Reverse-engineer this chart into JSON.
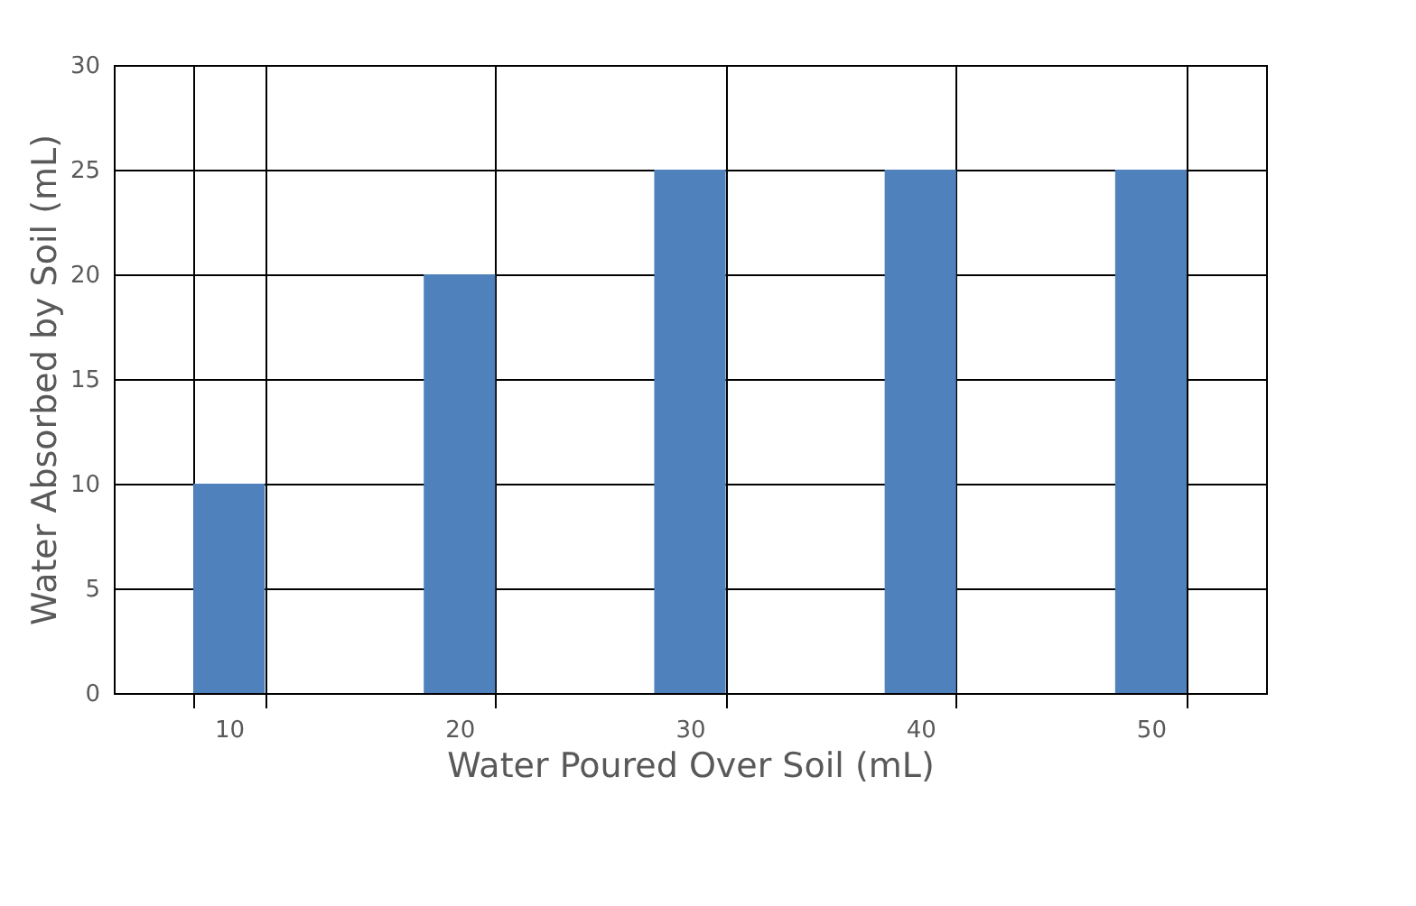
{
  "chart_data": {
    "type": "bar",
    "xlabel": "Water Poured Over Soil (mL)",
    "ylabel": "Water Absorbed by Soil (mL)",
    "categories": [
      "10",
      "20",
      "30",
      "40",
      "50"
    ],
    "values": [
      10,
      20,
      25,
      25,
      25
    ],
    "color": "#4f81bd",
    "ylim": [
      0,
      30
    ],
    "yticks": [
      0,
      5,
      10,
      15,
      20,
      25,
      30
    ],
    "grid": true
  }
}
